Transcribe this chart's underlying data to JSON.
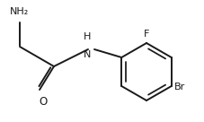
{
  "bg_color": "#ffffff",
  "line_color": "#1a1a1a",
  "line_width": 1.4,
  "font_size_label": 8.0,
  "fig_width": 2.27,
  "fig_height": 1.36,
  "dpi": 100,
  "NH2_label": "NH₂",
  "O_label": "O",
  "H_label": "H",
  "N_label": "N",
  "F_label": "F",
  "Br_label": "Br"
}
